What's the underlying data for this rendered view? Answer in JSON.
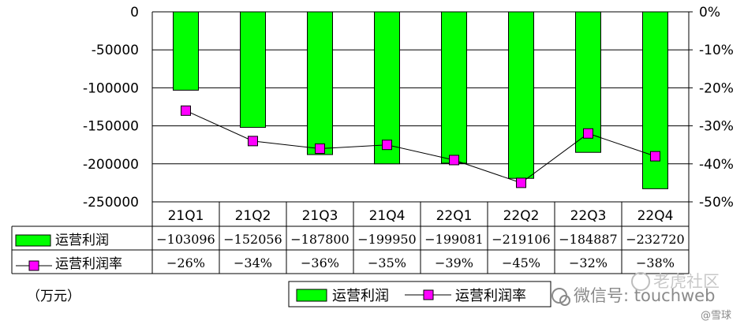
{
  "chart_data": {
    "type": "bar",
    "categories": [
      "21Q1",
      "21Q2",
      "21Q3",
      "21Q4",
      "22Q1",
      "22Q2",
      "22Q3",
      "22Q4"
    ],
    "series": [
      {
        "name": "运营利润",
        "type": "bar",
        "color": "#00ff00",
        "values": [
          -103096,
          -152056,
          -187800,
          -199950,
          -199081,
          -219106,
          -184887,
          -232720
        ],
        "labels": [
          "−103096",
          "−152056",
          "−187800",
          "−199950",
          "−199081",
          "−219106",
          "−184887",
          "−232720"
        ]
      },
      {
        "name": "运营利润率",
        "type": "line",
        "axis": "right",
        "color": "#ff00ff",
        "values": [
          -26,
          -34,
          -36,
          -35,
          -39,
          -45,
          -32,
          -38
        ],
        "labels": [
          "−26%",
          "−34%",
          "−36%",
          "−35%",
          "−39%",
          "−45%",
          "−32%",
          "−38%"
        ]
      }
    ],
    "y_left": {
      "range": [
        -250000,
        0
      ],
      "ticks": [
        "0",
        "-50000",
        "-100000",
        "-150000",
        "-200000",
        "-250000"
      ]
    },
    "y_right": {
      "range": [
        -50,
        0
      ],
      "ticks": [
        "0%",
        "-10%",
        "-20%",
        "-30%",
        "-40%",
        "-50%"
      ]
    },
    "unit": "（万元）",
    "grid": true,
    "legend": "bottom"
  },
  "watermark": {
    "text": "微信号: touchweb",
    "brand": "老虎社区",
    "source": "@雪球"
  }
}
